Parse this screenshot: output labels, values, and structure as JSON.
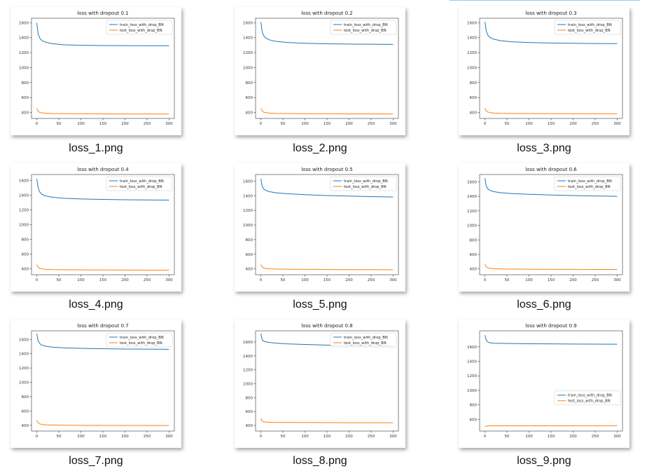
{
  "colors": {
    "train": "#1f77b4",
    "test": "#ff7f0e",
    "selection": "#9fc7ec"
  },
  "files": [
    {
      "filename": "loss_1.png",
      "chart_data": {
        "type": "line",
        "title": "loss with dropout 0.1",
        "xlabel": "",
        "ylabel": "",
        "xlim": [
          -12,
          312
        ],
        "ylim": [
          320,
          1660
        ],
        "xticks": [
          0,
          50,
          100,
          150,
          200,
          250,
          300
        ],
        "yticks": [
          400,
          600,
          800,
          1000,
          1200,
          1400,
          1600
        ],
        "grid": false,
        "legend": "top-right",
        "series": [
          {
            "name": "train_loss_with_drop_BN",
            "x": [
              0,
              3,
              7,
              12,
              20,
              35,
              60,
              100,
              150,
              200,
              250,
              300
            ],
            "y": [
              1600,
              1450,
              1390,
              1360,
              1340,
              1320,
              1305,
              1298,
              1295,
              1293,
              1292,
              1292
            ]
          },
          {
            "name": "test_loss_with_drop_BN",
            "x": [
              0,
              3,
              7,
              12,
              20,
              35,
              60,
              100,
              150,
              200,
              250,
              300
            ],
            "y": [
              455,
              415,
              400,
              394,
              390,
              386,
              384,
              382,
              381,
              380,
              380,
              380
            ]
          }
        ]
      }
    },
    {
      "filename": "loss_2.png",
      "chart_data": {
        "type": "line",
        "title": "loss with dropout 0.2",
        "xlabel": "",
        "ylabel": "",
        "xlim": [
          -12,
          312
        ],
        "ylim": [
          320,
          1660
        ],
        "xticks": [
          0,
          50,
          100,
          150,
          200,
          250,
          300
        ],
        "yticks": [
          400,
          600,
          800,
          1000,
          1200,
          1400,
          1600
        ],
        "grid": false,
        "legend": "top-right",
        "series": [
          {
            "name": "train_loss_with_drop_BN",
            "x": [
              0,
              3,
              7,
              12,
              20,
              35,
              60,
              100,
              150,
              200,
              250,
              300
            ],
            "y": [
              1610,
              1480,
              1420,
              1390,
              1370,
              1350,
              1335,
              1325,
              1318,
              1314,
              1312,
              1310
            ]
          },
          {
            "name": "test_loss_with_drop_BN",
            "x": [
              0,
              3,
              7,
              12,
              20,
              35,
              60,
              100,
              150,
              200,
              250,
              300
            ],
            "y": [
              455,
              418,
              403,
              396,
              391,
              387,
              385,
              383,
              382,
              381,
              381,
              380
            ]
          }
        ]
      }
    },
    {
      "filename": "loss_3.png",
      "chart_data": {
        "type": "line",
        "title": "loss with dropout 0.3",
        "xlabel": "",
        "ylabel": "",
        "xlim": [
          -12,
          312
        ],
        "ylim": [
          320,
          1660
        ],
        "xticks": [
          0,
          50,
          100,
          150,
          200,
          250,
          300
        ],
        "yticks": [
          400,
          600,
          800,
          1000,
          1200,
          1400,
          1600
        ],
        "grid": false,
        "legend": "top-right",
        "series": [
          {
            "name": "train_loss_with_drop_BN",
            "x": [
              0,
              3,
              7,
              12,
              20,
              35,
              60,
              100,
              150,
              200,
              250,
              300
            ],
            "y": [
              1610,
              1490,
              1430,
              1400,
              1380,
              1360,
              1345,
              1335,
              1328,
              1325,
              1322,
              1320
            ]
          },
          {
            "name": "test_loss_with_drop_BN",
            "x": [
              0,
              3,
              7,
              12,
              20,
              35,
              60,
              100,
              150,
              200,
              250,
              300
            ],
            "y": [
              458,
              420,
              405,
              398,
              393,
              389,
              387,
              385,
              384,
              383,
              382,
              382
            ]
          }
        ]
      }
    },
    {
      "filename": "loss_4.png",
      "chart_data": {
        "type": "line",
        "title": "loss with dropout 0.4",
        "xlabel": "",
        "ylabel": "",
        "xlim": [
          -12,
          312
        ],
        "ylim": [
          320,
          1680
        ],
        "xticks": [
          0,
          50,
          100,
          150,
          200,
          250,
          300
        ],
        "yticks": [
          400,
          600,
          800,
          1000,
          1200,
          1400,
          1600
        ],
        "grid": false,
        "legend": "top-right",
        "series": [
          {
            "name": "train_loss_with_drop_BN",
            "x": [
              0,
              3,
              7,
              12,
              20,
              35,
              60,
              100,
              150,
              200,
              250,
              300
            ],
            "y": [
              1620,
              1500,
              1440,
              1410,
              1390,
              1372,
              1358,
              1348,
              1342,
              1338,
              1335,
              1333
            ]
          },
          {
            "name": "test_loss_with_drop_BN",
            "x": [
              0,
              3,
              7,
              12,
              20,
              35,
              60,
              100,
              150,
              200,
              250,
              300
            ],
            "y": [
              460,
              422,
              407,
              399,
              394,
              390,
              388,
              386,
              385,
              384,
              383,
              383
            ]
          }
        ]
      }
    },
    {
      "filename": "loss_5.png",
      "chart_data": {
        "type": "line",
        "title": "loss with dropout 0.5",
        "xlabel": "",
        "ylabel": "",
        "xlim": [
          -12,
          312
        ],
        "ylim": [
          320,
          1690
        ],
        "xticks": [
          0,
          50,
          100,
          150,
          200,
          250,
          300
        ],
        "yticks": [
          400,
          600,
          800,
          1000,
          1200,
          1400,
          1600
        ],
        "grid": false,
        "legend": "top-right",
        "series": [
          {
            "name": "train_loss_with_drop_BN",
            "x": [
              0,
              3,
              7,
              12,
              20,
              35,
              60,
              100,
              150,
              200,
              250,
              300
            ],
            "y": [
              1630,
              1530,
              1490,
              1470,
              1455,
              1440,
              1428,
              1415,
              1403,
              1395,
              1388,
              1382
            ]
          },
          {
            "name": "test_loss_with_drop_BN",
            "x": [
              0,
              3,
              7,
              12,
              20,
              35,
              60,
              100,
              150,
              200,
              250,
              300
            ],
            "y": [
              462,
              425,
              412,
              405,
              401,
              398,
              396,
              394,
              392,
              390,
              389,
              388
            ]
          }
        ]
      }
    },
    {
      "filename": "loss_6.png",
      "chart_data": {
        "type": "line",
        "title": "loss with dropout 0.6",
        "xlabel": "",
        "ylabel": "",
        "xlim": [
          -12,
          312
        ],
        "ylim": [
          320,
          1700
        ],
        "xticks": [
          0,
          50,
          100,
          150,
          200,
          250,
          300
        ],
        "yticks": [
          400,
          600,
          800,
          1000,
          1200,
          1400,
          1600
        ],
        "grid": false,
        "legend": "top-right",
        "series": [
          {
            "name": "train_loss_with_drop_BN",
            "x": [
              0,
              3,
              7,
              12,
              20,
              35,
              60,
              100,
              150,
              200,
              250,
              300
            ],
            "y": [
              1650,
              1540,
              1500,
              1480,
              1465,
              1450,
              1438,
              1428,
              1418,
              1410,
              1404,
              1400
            ]
          },
          {
            "name": "test_loss_with_drop_BN",
            "x": [
              0,
              3,
              7,
              12,
              20,
              35,
              60,
              100,
              150,
              200,
              250,
              300
            ],
            "y": [
              465,
              428,
              414,
              407,
              403,
              400,
              398,
              396,
              395,
              394,
              393,
              392
            ]
          }
        ]
      }
    },
    {
      "filename": "loss_7.png",
      "chart_data": {
        "type": "line",
        "title": "loss with dropout 0.7",
        "xlabel": "",
        "ylabel": "",
        "xlim": [
          -12,
          312
        ],
        "ylim": [
          320,
          1720
        ],
        "xticks": [
          0,
          50,
          100,
          150,
          200,
          250,
          300
        ],
        "yticks": [
          400,
          600,
          800,
          1000,
          1200,
          1400,
          1600
        ],
        "grid": false,
        "legend": "top-right",
        "series": [
          {
            "name": "train_loss_with_drop_BN",
            "x": [
              0,
              3,
              7,
              12,
              20,
              35,
              60,
              100,
              150,
              200,
              250,
              300
            ],
            "y": [
              1680,
              1580,
              1540,
              1520,
              1505,
              1492,
              1482,
              1475,
              1470,
              1466,
              1464,
              1462
            ]
          },
          {
            "name": "test_loss_with_drop_BN",
            "x": [
              0,
              3,
              7,
              12,
              20,
              35,
              60,
              100,
              150,
              200,
              250,
              300
            ],
            "y": [
              475,
              435,
              420,
              412,
              407,
              404,
              402,
              400,
              399,
              398,
              398,
              397
            ]
          }
        ]
      }
    },
    {
      "filename": "loss_8.png",
      "chart_data": {
        "type": "line",
        "title": "loss with dropout 0.8",
        "xlabel": "",
        "ylabel": "",
        "xlim": [
          -12,
          312
        ],
        "ylim": [
          320,
          1760
        ],
        "xticks": [
          0,
          50,
          100,
          150,
          200,
          250,
          300
        ],
        "yticks": [
          400,
          600,
          800,
          1000,
          1200,
          1400,
          1600
        ],
        "grid": false,
        "legend": "top-right",
        "series": [
          {
            "name": "train_loss_with_drop_BN",
            "x": [
              0,
              3,
              7,
              12,
              20,
              35,
              60,
              100,
              150,
              200,
              250,
              300
            ],
            "y": [
              1720,
              1630,
              1610,
              1600,
              1592,
              1582,
              1572,
              1563,
              1555,
              1548,
              1543,
              1540
            ]
          },
          {
            "name": "test_loss_with_drop_BN",
            "x": [
              0,
              3,
              7,
              12,
              20,
              35,
              60,
              100,
              150,
              200,
              250,
              300
            ],
            "y": [
              505,
              462,
              452,
              448,
              446,
              444,
              443,
              442,
              441,
              440,
              440,
              439
            ]
          }
        ]
      }
    },
    {
      "filename": "loss_9.png",
      "chart_data": {
        "type": "line",
        "title": "loss with dropout 0.9",
        "xlabel": "",
        "ylabel": "",
        "xlim": [
          -12,
          312
        ],
        "ylim": [
          440,
          1820
        ],
        "xticks": [
          0,
          50,
          100,
          150,
          200,
          250,
          300
        ],
        "yticks": [
          600,
          800,
          1000,
          1200,
          1400,
          1600
        ],
        "grid": false,
        "legend": "center-right",
        "series": [
          {
            "name": "train_loss_with_drop_BN",
            "x": [
              0,
              3,
              7,
              12,
              20,
              35,
              60,
              100,
              150,
              200,
              250,
              300
            ],
            "y": [
              1760,
              1690,
              1665,
              1655,
              1650,
              1647,
              1645,
              1642,
              1640,
              1638,
              1637,
              1636
            ]
          },
          {
            "name": "test_loss_with_drop_BN",
            "x": [
              0,
              3,
              7,
              12,
              20,
              35,
              60,
              100,
              150,
              200,
              250,
              300
            ],
            "y": [
              505,
              508,
              510,
              511,
              512,
              512,
              513,
              513,
              513,
              513,
              514,
              514
            ]
          }
        ]
      }
    }
  ]
}
